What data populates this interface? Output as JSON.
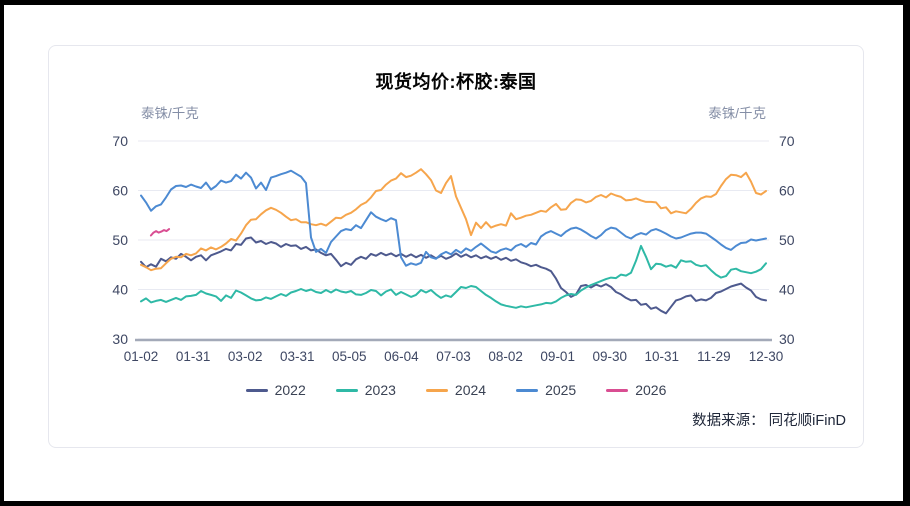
{
  "card": {
    "title": "现货均价:杯胶:泰国",
    "unit_left": "泰铢/千克",
    "unit_right": "泰铢/千克",
    "source": "数据来源： 同花顺iFinD"
  },
  "chart_data": {
    "type": "line",
    "title": "现货均价:杯胶:泰国",
    "ylabel_left": "泰铢/千克",
    "ylabel_right": "泰铢/千克",
    "ylim": [
      30,
      70
    ],
    "y_ticks": [
      70,
      60,
      50,
      40,
      30
    ],
    "x_ticks": [
      "01-02",
      "01-31",
      "03-02",
      "03-31",
      "05-05",
      "06-04",
      "07-03",
      "08-02",
      "09-01",
      "09-30",
      "10-31",
      "11-29",
      "12-30"
    ],
    "grid": true,
    "legend_position": "bottom",
    "colors": {
      "grid": "#e8eaf2",
      "axis": "#a3a9b8",
      "tick_text": "#3e4763",
      "unit_text": "#848ea6",
      "title_text": "#050505"
    },
    "series": [
      {
        "name": "2022",
        "color": "#4e5a8e",
        "x_start": 0,
        "x_end": 12,
        "values": [
          45.6,
          44.5,
          45.1,
          44.6,
          46.2,
          45.7,
          46.5,
          46.2,
          47.2,
          46.6,
          45.9,
          46.6,
          46.9,
          45.9,
          46.9,
          47.3,
          47.7,
          48.2,
          47.9,
          49.2,
          49.0,
          50.3,
          50.5,
          49.5,
          49.8,
          49.2,
          49.6,
          49.3,
          48.6,
          49.2,
          48.8,
          48.9,
          48.2,
          48.6,
          47.9,
          48.1,
          47.4,
          46.9,
          47.2,
          46.0,
          44.7,
          45.4,
          45.0,
          46.1,
          46.6,
          46.2,
          47.2,
          46.8,
          47.4,
          46.9,
          47.3,
          46.7,
          47.2,
          46.6,
          47.1,
          46.5,
          47.0,
          46.4,
          46.9,
          46.3,
          46.8,
          46.2,
          46.6,
          47.3,
          46.6,
          47.1,
          46.5,
          46.9,
          46.3,
          46.7,
          46.2,
          46.6,
          46.0,
          46.4,
          45.8,
          46.1,
          45.5,
          45.2,
          44.7,
          45.0,
          44.5,
          44.2,
          43.7,
          42.2,
          40.3,
          39.5,
          38.5,
          39.0,
          40.7,
          40.9,
          40.4,
          41.0,
          40.6,
          41.1,
          40.5,
          39.5,
          39.0,
          38.3,
          37.8,
          37.9,
          36.9,
          37.1,
          36.1,
          36.4,
          35.7,
          35.2,
          36.5,
          37.8,
          38.1,
          38.6,
          38.8,
          37.7,
          38.0,
          37.8,
          38.3,
          39.3,
          39.6,
          40.1,
          40.6,
          40.9,
          41.2,
          40.4,
          39.8,
          38.5,
          38.0,
          37.8
        ]
      },
      {
        "name": "2023",
        "color": "#2fb9a6",
        "x_start": 0,
        "x_end": 12,
        "values": [
          37.6,
          38.2,
          37.4,
          37.7,
          37.9,
          37.5,
          37.9,
          38.3,
          37.9,
          38.6,
          38.7,
          38.9,
          39.7,
          39.2,
          38.9,
          38.6,
          37.7,
          38.8,
          38.3,
          39.8,
          39.4,
          38.8,
          38.2,
          37.8,
          37.9,
          38.4,
          38.1,
          38.6,
          39.1,
          38.7,
          39.4,
          39.7,
          40.1,
          39.7,
          40.0,
          39.5,
          39.3,
          39.9,
          39.4,
          40.0,
          39.6,
          39.4,
          39.7,
          39.0,
          38.9,
          39.3,
          39.9,
          39.7,
          38.8,
          39.6,
          40.0,
          38.9,
          39.5,
          39.0,
          38.5,
          38.9,
          39.9,
          39.4,
          39.9,
          39.0,
          38.3,
          38.8,
          38.5,
          39.5,
          40.5,
          40.3,
          40.7,
          40.5,
          39.7,
          38.9,
          38.3,
          37.6,
          37.0,
          36.7,
          36.5,
          36.3,
          36.6,
          36.4,
          36.6,
          36.8,
          37.0,
          37.3,
          37.2,
          37.6,
          38.3,
          38.8,
          39.1,
          38.9,
          39.8,
          40.4,
          40.9,
          41.3,
          41.7,
          42.1,
          42.4,
          42.3,
          43.0,
          42.8,
          43.4,
          45.8,
          48.8,
          46.6,
          44.1,
          45.2,
          45.1,
          44.6,
          44.9,
          44.4,
          45.9,
          45.6,
          45.7,
          45.0,
          44.7,
          44.9,
          43.9,
          43.0,
          42.4,
          42.7,
          44.0,
          44.2,
          43.7,
          43.5,
          43.3,
          43.6,
          44.1,
          45.3
        ]
      },
      {
        "name": "2024",
        "color": "#f6a54c",
        "x_start": 0,
        "x_end": 12,
        "values": [
          45.0,
          44.5,
          43.9,
          44.2,
          44.3,
          45.3,
          46.2,
          46.6,
          46.5,
          47.2,
          46.9,
          47.3,
          48.3,
          47.9,
          48.5,
          48.1,
          48.6,
          49.3,
          50.2,
          49.9,
          51.3,
          53.0,
          54.1,
          54.2,
          55.2,
          56.0,
          56.5,
          56.1,
          55.5,
          54.7,
          54.0,
          54.2,
          53.6,
          53.6,
          53.2,
          53.0,
          53.3,
          52.9,
          53.7,
          54.5,
          54.4,
          55.1,
          55.5,
          56.2,
          57.1,
          57.6,
          58.6,
          59.9,
          60.1,
          61.2,
          62.0,
          62.4,
          63.5,
          62.7,
          63.0,
          63.6,
          64.3,
          63.3,
          62.1,
          60.0,
          59.5,
          61.5,
          62.9,
          58.8,
          56.5,
          54.2,
          51.0,
          53.5,
          52.4,
          53.6,
          52.5,
          52.9,
          53.2,
          52.9,
          55.4,
          54.2,
          54.5,
          54.9,
          55.1,
          55.5,
          55.9,
          55.7,
          56.6,
          57.3,
          56.1,
          56.2,
          57.5,
          58.2,
          58.1,
          57.6,
          57.9,
          58.7,
          59.1,
          58.6,
          59.4,
          59.0,
          58.7,
          58.0,
          58.1,
          58.4,
          58.0,
          57.7,
          57.7,
          57.6,
          56.4,
          56.6,
          55.4,
          55.8,
          55.6,
          55.4,
          56.3,
          57.5,
          58.4,
          58.8,
          58.7,
          59.3,
          60.9,
          62.3,
          63.2,
          63.1,
          62.7,
          63.6,
          61.8,
          59.5,
          59.2,
          59.9
        ]
      },
      {
        "name": "2025",
        "color": "#4c8ad2",
        "x_start": 0,
        "x_end": 12,
        "values": [
          59.0,
          57.6,
          55.9,
          56.8,
          57.2,
          58.6,
          60.2,
          60.9,
          61.0,
          60.7,
          61.2,
          60.8,
          60.5,
          61.6,
          60.2,
          60.9,
          62.0,
          61.6,
          61.9,
          63.2,
          62.4,
          63.6,
          62.6,
          60.4,
          61.6,
          60.1,
          62.6,
          62.9,
          63.3,
          63.6,
          64.0,
          63.4,
          62.8,
          61.5,
          50.5,
          47.6,
          48.2,
          47.4,
          49.6,
          50.7,
          51.8,
          52.2,
          52.0,
          53.0,
          52.4,
          54.0,
          55.6,
          54.7,
          54.2,
          53.8,
          54.4,
          54.0,
          46.5,
          44.8,
          45.3,
          45.0,
          45.4,
          47.6,
          46.5,
          46.2,
          47.1,
          47.6,
          47.1,
          48.0,
          47.4,
          48.3,
          47.8,
          48.6,
          49.3,
          48.5,
          47.7,
          47.4,
          48.0,
          48.3,
          47.9,
          48.8,
          49.2,
          48.6,
          49.4,
          49.1,
          50.7,
          51.4,
          51.8,
          51.3,
          50.8,
          51.7,
          52.3,
          52.5,
          52.1,
          51.5,
          50.8,
          50.3,
          51.0,
          52.0,
          52.5,
          52.3,
          51.5,
          50.7,
          50.3,
          51.0,
          51.4,
          51.1,
          51.9,
          52.2,
          51.8,
          51.3,
          50.7,
          50.3,
          50.5,
          50.9,
          51.3,
          51.5,
          51.5,
          51.3,
          50.6,
          49.9,
          49.1,
          48.4,
          48.0,
          48.8,
          49.4,
          49.5,
          50.1,
          49.9,
          50.1,
          50.3
        ]
      },
      {
        "name": "2026",
        "color": "#d94e92",
        "x_start": 0.19,
        "x_end": 0.54,
        "values": [
          50.9,
          51.5,
          51.8,
          51.5,
          51.7,
          52.0,
          51.8,
          52.2
        ]
      }
    ]
  }
}
